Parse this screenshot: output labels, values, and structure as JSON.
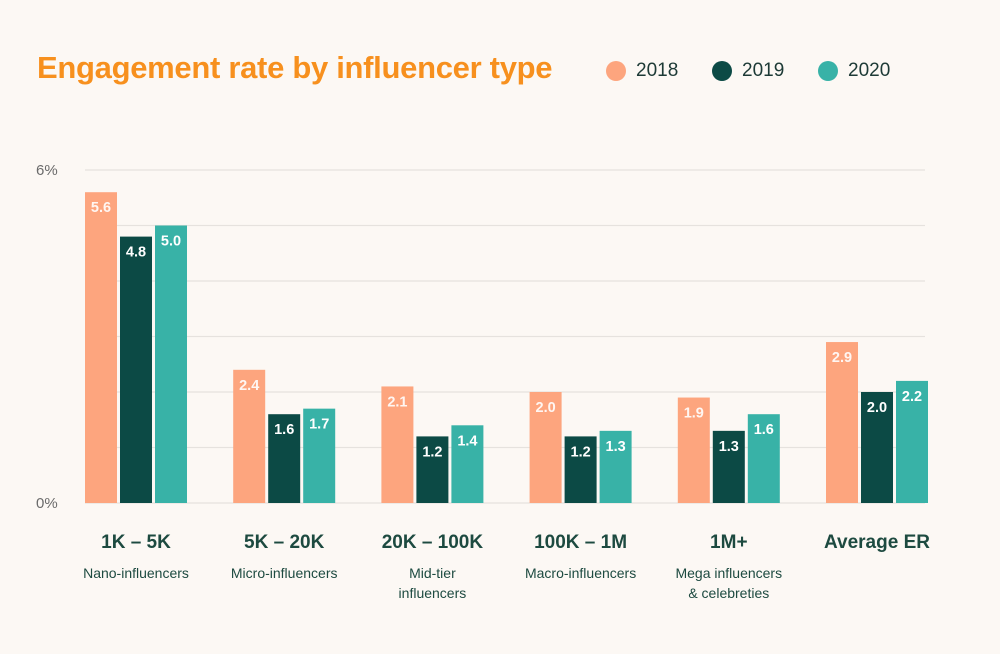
{
  "chart_data": {
    "type": "bar",
    "title": "Engagement rate by influencer type",
    "categories": [
      "1K – 5K",
      "5K – 20K",
      "20K – 100K",
      "100K – 1M",
      "1M+",
      "Average ER"
    ],
    "subcategories": [
      "Nano-influencers",
      "Micro-influencers",
      "Mid-tier\ninfluencers",
      "Macro-influencers",
      "Mega influencers\n& celebreties",
      ""
    ],
    "series": [
      {
        "name": "2018",
        "color": "#fda57e",
        "values": [
          5.6,
          2.4,
          2.1,
          2.0,
          1.9,
          2.9
        ]
      },
      {
        "name": "2019",
        "color": "#0c4a45",
        "values": [
          4.8,
          1.6,
          1.2,
          1.2,
          1.3,
          2.0
        ]
      },
      {
        "name": "2020",
        "color": "#38b2a7",
        "values": [
          5.0,
          1.7,
          1.4,
          1.3,
          1.6,
          2.2
        ]
      }
    ],
    "ylim": [
      0,
      6
    ],
    "yticks": [
      {
        "value": 0,
        "label": "0%"
      },
      {
        "value": 6,
        "label": "6%"
      }
    ],
    "grid": true,
    "legend_position": "top-right",
    "xlabel": "",
    "ylabel": ""
  }
}
